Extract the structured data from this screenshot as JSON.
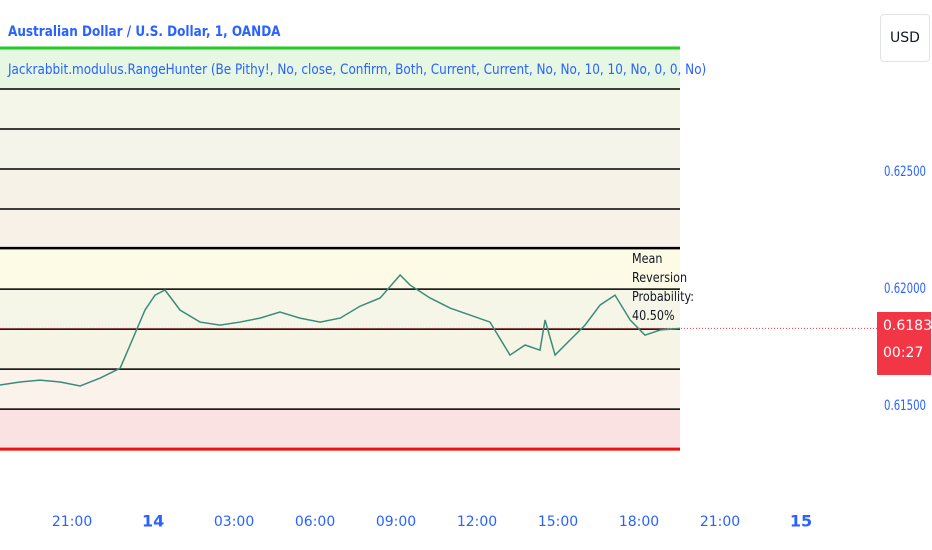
{
  "chart_data": {
    "type": "line",
    "title": "Australian Dollar / U.S. Dollar, 1, OANDA",
    "indicator": "Jackrabbit.modulus.RangeHunter (Be Pithy!, No, close, Confirm, Both, Current, Current, No, No, 10, 10, No, 0, 0, No)",
    "currency": "USD",
    "annotation": "Mean Reversion Probability: 40.50%",
    "last_price": 0.61832,
    "countdown": "00:27",
    "color": "#3a8c7a",
    "x": [
      -2.67,
      -1.93,
      -1.19,
      -0.44,
      0.3,
      1.04,
      1.78,
      2.15,
      2.7,
      3.07,
      3.44,
      4.0,
      4.74,
      5.48,
      6.22,
      6.96,
      7.7,
      8.44,
      9.19,
      9.93,
      10.67,
      11.41,
      12.15,
      12.52,
      13.26,
      14.0,
      14.74,
      15.48,
      16.22,
      16.78,
      17.33,
      17.52,
      17.89,
      18.44,
      19.0,
      19.56,
      20.11,
      20.67,
      21.22,
      21.78,
      22.52
    ],
    "values": [
      0.6159,
      0.61603,
      0.61611,
      0.61603,
      0.61586,
      0.6162,
      0.61662,
      0.61761,
      0.6191,
      0.61974,
      0.61996,
      0.6191,
      0.61859,
      0.61846,
      0.61859,
      0.61876,
      0.61902,
      0.61876,
      0.61859,
      0.61876,
      0.61927,
      0.61962,
      0.6206,
      0.62017,
      0.61962,
      0.61919,
      0.61889,
      0.61859,
      0.61718,
      0.61761,
      0.61739,
      0.61868,
      0.61718,
      0.61782,
      0.61846,
      0.61932,
      0.61974,
      0.61868,
      0.61803,
      0.61825,
      0.61832
    ],
    "levels": [
      0.6303,
      0.62855,
      0.62684,
      0.62513,
      0.62342,
      0.62175,
      0.62,
      0.61829,
      0.61658,
      0.61487,
      0.61316
    ],
    "level_colors": [
      "#22cc22",
      "#000000",
      "#000000",
      "#000000",
      "#000000",
      "#000000",
      "#000000",
      "#000000",
      "#000000",
      "#000000",
      "#ee1111"
    ],
    "band_colors": [
      "#e6f7e3",
      "#f3f6e9",
      "#f4f4ea",
      "#f7f2e8",
      "#f8f1e8",
      "#fdfbe6",
      "#f6f6e8",
      "#f6f4e4",
      "#fbf2ec",
      "#fbe2e2"
    ],
    "xlim": [
      -2.67,
      29.37
    ],
    "ylim": [
      0.61227,
      0.63235
    ],
    "xticks": [
      {
        "value": 0,
        "label": "21:00"
      },
      {
        "value": 3,
        "label": "14"
      },
      {
        "value": 6,
        "label": "03:00"
      },
      {
        "value": 9,
        "label": "06:00"
      },
      {
        "value": 12,
        "label": "09:00"
      },
      {
        "value": 15,
        "label": "12:00"
      },
      {
        "value": 18,
        "label": "15:00"
      },
      {
        "value": 21,
        "label": "18:00"
      },
      {
        "value": 24,
        "label": "21:00"
      },
      {
        "value": 27,
        "label": "15"
      }
    ],
    "yticks": [
      {
        "value": 0.625,
        "label": "0.62500"
      },
      {
        "value": 0.62,
        "label": "0.62000"
      },
      {
        "value": 0.615,
        "label": "0.61500"
      }
    ]
  }
}
